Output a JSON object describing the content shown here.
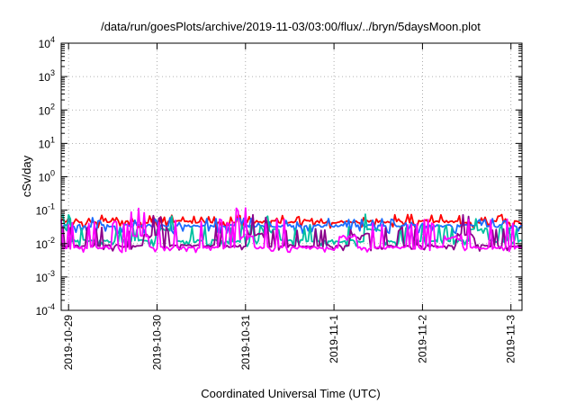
{
  "chart_data": {
    "type": "line",
    "title": "/data/run/goesPlots/archive/2019-11-03/03:00/flux/../bryn/5daysMoon.plot",
    "xlabel": "Coordinated Universal Time (UTC)",
    "ylabel": "cSv/day",
    "yscale": "log",
    "ylim": [
      0.0001,
      10000
    ],
    "xlim": [
      "2019-10-28T22:00",
      "2019-11-03T03:00"
    ],
    "grid": true,
    "x_ticks": [
      "2019-10-29",
      "2019-10-30",
      "2019-10-31",
      "2019-11-1",
      "2019-11-2",
      "2019-11-3"
    ],
    "y_ticks": [
      {
        "value": 0.0001,
        "base": "10",
        "exp": "-4"
      },
      {
        "value": 0.001,
        "base": "10",
        "exp": "-3"
      },
      {
        "value": 0.01,
        "base": "10",
        "exp": "-2"
      },
      {
        "value": 0.1,
        "base": "10",
        "exp": "-1"
      },
      {
        "value": 1,
        "base": "10",
        "exp": "0"
      },
      {
        "value": 10,
        "base": "10",
        "exp": "1"
      },
      {
        "value": 100,
        "base": "10",
        "exp": "2"
      },
      {
        "value": 1000,
        "base": "10",
        "exp": "3"
      },
      {
        "value": 10000,
        "base": "10",
        "exp": "4"
      }
    ],
    "series": [
      {
        "color": "#ff0000",
        "baseline": 0.045,
        "spike": 0.062,
        "dip": 0.032,
        "phase": 0
      },
      {
        "color": "#1a6cff",
        "baseline": 0.034,
        "spike": 0.05,
        "dip": 0.022,
        "phase": 1
      },
      {
        "color": "#00c0a0",
        "baseline": 0.012,
        "spike": 0.03,
        "dip": 0.009,
        "phase": 2
      },
      {
        "color": "#8b008b",
        "baseline": 0.0085,
        "spike": 0.028,
        "dip": 0.0065,
        "phase": 3
      },
      {
        "color": "#ff00ff",
        "baseline": 0.0075,
        "spike": 0.045,
        "dip": 0.006,
        "phase": 4
      }
    ]
  }
}
